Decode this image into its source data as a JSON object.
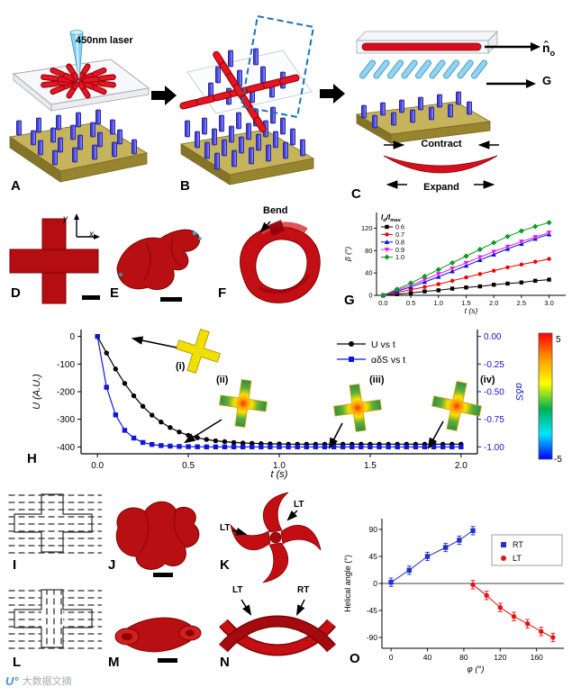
{
  "watermark": {
    "logo": "U°",
    "text": "大数据文摘"
  },
  "panels": {
    "A": {
      "label": "A",
      "laser_label": "450nm laser"
    },
    "B": {
      "label": "B"
    },
    "C": {
      "label": "C",
      "n_main": "n̂",
      "n_sub": "o",
      "g_arrow": "G",
      "contract": "Contract",
      "expand": "Expand"
    },
    "D": {
      "label": "D",
      "x_axis": "x",
      "y_axis": "y"
    },
    "E": {
      "label": "E"
    },
    "F": {
      "label": "F",
      "bend": "Bend"
    },
    "G": {
      "label": "G"
    },
    "H": {
      "label": "H"
    },
    "I": {
      "label": "I"
    },
    "J": {
      "label": "J"
    },
    "K": {
      "label": "K",
      "lt_top": "LT",
      "lt_left": "LT"
    },
    "L": {
      "label": "L"
    },
    "M": {
      "label": "M"
    },
    "N": {
      "label": "N",
      "lt": "LT",
      "rt": "RT"
    },
    "O": {
      "label": "O"
    }
  },
  "chart_data": [
    {
      "id": "G",
      "type": "line",
      "xlabel": "t (s)",
      "ylabel": "β (°)",
      "legend_title_parts": [
        [
          "I",
          0
        ],
        [
          "d",
          1
        ],
        [
          "/",
          0
        ],
        [
          "I",
          0
        ],
        [
          "max",
          1
        ]
      ],
      "xlim": [
        -0.12,
        3.3
      ],
      "ylim": [
        0,
        148
      ],
      "xtick_values": [
        0,
        0.5,
        1,
        1.5,
        2,
        2.5,
        3
      ],
      "xtick_labels": [
        "0.0",
        "0.5",
        "1.0",
        "1.5",
        "2.0",
        "2.5",
        "3.0"
      ],
      "ytick_values": [
        0,
        40,
        80,
        120
      ],
      "ytick_labels": [
        "0",
        "40",
        "80",
        "120"
      ],
      "x": [
        0,
        0.25,
        0.5,
        0.75,
        1,
        1.25,
        1.5,
        1.75,
        2,
        2.25,
        2.5,
        2.75,
        3
      ],
      "series": [
        {
          "name": "0.6",
          "color": "#000000",
          "marker": "square",
          "values": [
            0,
            2,
            4,
            7,
            9,
            12,
            14,
            16,
            19,
            21,
            23,
            26,
            28
          ]
        },
        {
          "name": "0.7",
          "color": "#f00000",
          "marker": "circle",
          "values": [
            0,
            5,
            10,
            15,
            20,
            26,
            32,
            38,
            44,
            50,
            55,
            60,
            65
          ]
        },
        {
          "name": "0.8",
          "color": "#0010e8",
          "marker": "triangle",
          "values": [
            0,
            7,
            15,
            24,
            33,
            43,
            53,
            63,
            73,
            83,
            92,
            101,
            109
          ]
        },
        {
          "name": "0.9",
          "color": "#e81ce8",
          "marker": "triangle-down",
          "values": [
            0,
            9,
            18,
            28,
            38,
            48,
            58,
            68,
            78,
            87,
            96,
            104,
            112
          ]
        },
        {
          "name": "1.0",
          "color": "#0f9b20",
          "marker": "diamond",
          "values": [
            0,
            11,
            22,
            34,
            46,
            58,
            70,
            82,
            94,
            105,
            115,
            123,
            130
          ]
        }
      ]
    },
    {
      "id": "H",
      "type": "line",
      "xlabel": "t (s)",
      "ylabel_left": "U (A.U.)",
      "ylabel_right": "αδS",
      "xlim": [
        -0.09,
        2.09
      ],
      "ylim_left": [
        -425,
        25
      ],
      "ylim_right": [
        -1.0625,
        0.0625
      ],
      "xtick_values": [
        0,
        0.5,
        1,
        1.5,
        2
      ],
      "xtick_labels": [
        "0.0",
        "0.5",
        "1.0",
        "1.5",
        "2.0"
      ],
      "ytick_left_values": [
        0,
        -100,
        -200,
        -300,
        -400
      ],
      "ytick_left_labels": [
        "0",
        "-100",
        "-200",
        "-300",
        "-400"
      ],
      "ytick_right_values": [
        0,
        -0.25,
        -0.5,
        -0.75,
        -1
      ],
      "ytick_right_labels": [
        "0.00",
        "-0.25",
        "-0.50",
        "-0.75",
        "-1.00"
      ],
      "t": [
        0,
        0.05,
        0.1,
        0.15,
        0.2,
        0.25,
        0.3,
        0.35,
        0.4,
        0.45,
        0.5,
        0.55,
        0.6,
        0.65,
        0.7,
        0.75,
        0.8,
        0.85,
        0.9,
        0.95,
        1,
        1.05,
        1.1,
        1.15,
        1.2,
        1.25,
        1.3,
        1.35,
        1.4,
        1.45,
        1.5,
        1.55,
        1.6,
        1.65,
        1.7,
        1.75,
        1.8,
        1.85,
        1.9,
        1.95,
        2
      ],
      "series": [
        {
          "name": "U vs t",
          "axis": "left",
          "color": "#000000",
          "marker": "circle",
          "values": [
            0,
            -60,
            -118,
            -170,
            -215,
            -253,
            -285,
            -310,
            -330,
            -346,
            -358,
            -367,
            -373,
            -378,
            -381,
            -384,
            -386,
            -387,
            -388,
            -389,
            -389,
            -390,
            -390,
            -390,
            -390,
            -390,
            -390,
            -390,
            -390,
            -390,
            -390,
            -390,
            -390,
            -390,
            -390,
            -390,
            -390,
            -390,
            -390,
            -390,
            -390
          ]
        },
        {
          "name": "αδS vs t",
          "axis": "right",
          "color": "#1016d8",
          "marker": "square",
          "values": [
            0,
            -0.46,
            -0.71,
            -0.85,
            -0.92,
            -0.96,
            -0.978,
            -0.988,
            -0.993,
            -0.996,
            -0.998,
            -0.999,
            -1,
            -1,
            -1,
            -1,
            -1,
            -1,
            -1,
            -1,
            -1,
            -1,
            -1,
            -1,
            -1,
            -1,
            -1,
            -1,
            -1,
            -1,
            -1,
            -1,
            -1,
            -1,
            -1,
            -1,
            -1,
            -1,
            -1,
            -1,
            -1
          ]
        }
      ],
      "insets": [
        "(i)",
        "(ii)",
        "(iii)",
        "(iv)"
      ],
      "colorbar": {
        "max": "5",
        "min": "-5",
        "colors": [
          "#ff0000",
          "#ff9900",
          "#ffff00",
          "#00b050",
          "#00e5ff",
          "#0000ff"
        ]
      }
    },
    {
      "id": "O",
      "type": "scatter",
      "xlabel": "φ (°)",
      "ylabel": "Helical angle (°)",
      "xlim": [
        -10,
        190
      ],
      "ylim": [
        -108,
        108
      ],
      "hline": 0,
      "xtick_values": [
        0,
        40,
        80,
        120,
        160
      ],
      "xtick_labels": [
        "0",
        "40",
        "80",
        "120",
        "160"
      ],
      "ytick_values": [
        -90,
        -45,
        0,
        45,
        90
      ],
      "ytick_labels": [
        "-90",
        "-45",
        "0",
        "45",
        "90"
      ],
      "series": [
        {
          "name": "RT",
          "color": "#2233cc",
          "marker": "square",
          "yerr": 7,
          "points": [
            [
              0,
              2
            ],
            [
              20,
              22
            ],
            [
              40,
              45
            ],
            [
              60,
              60
            ],
            [
              75,
              72
            ],
            [
              90,
              88
            ]
          ]
        },
        {
          "name": "LT",
          "color": "#e81212",
          "marker": "circle",
          "yerr": 7,
          "points": [
            [
              90,
              -2
            ],
            [
              105,
              -20
            ],
            [
              120,
              -40
            ],
            [
              135,
              -55
            ],
            [
              150,
              -67
            ],
            [
              165,
              -80
            ],
            [
              178,
              -90
            ]
          ]
        }
      ]
    }
  ]
}
